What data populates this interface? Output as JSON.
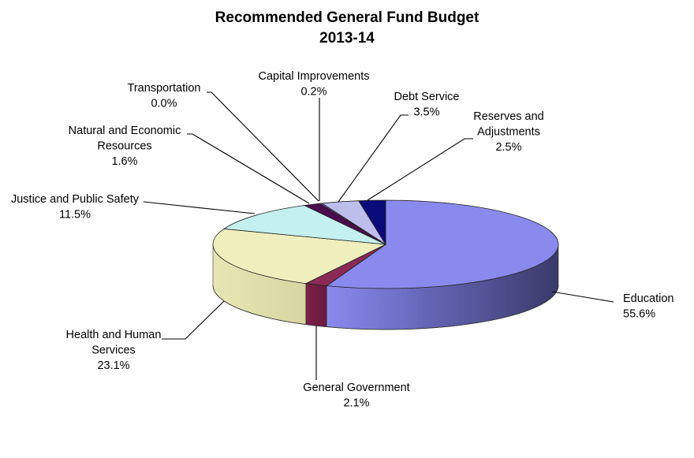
{
  "chart_data": {
    "type": "pie",
    "title": "Recommended General Fund Budget",
    "subtitle": "2013-14",
    "slices": [
      {
        "name": "Education",
        "label_lines": [
          "Education"
        ],
        "value_label": "55.6%",
        "value": 55.6,
        "color": "#8a8aee"
      },
      {
        "name": "General Government",
        "label_lines": [
          "General Government"
        ],
        "value_label": "2.1%",
        "value": 2.1,
        "color": "#8a2a55"
      },
      {
        "name": "Health and Human Services",
        "label_lines": [
          "Health and Human",
          "Services"
        ],
        "value_label": "23.1%",
        "value": 23.1,
        "color": "#efefbe"
      },
      {
        "name": "Justice and Public Safety",
        "label_lines": [
          "Justice and Public Safety"
        ],
        "value_label": "11.5%",
        "value": 11.5,
        "color": "#c4f0ef"
      },
      {
        "name": "Natural and Economic Resources",
        "label_lines": [
          "Natural and Economic",
          "Resources"
        ],
        "value_label": "1.6%",
        "value": 1.6,
        "color": "#4a0c4e"
      },
      {
        "name": "Transportation",
        "label_lines": [
          "Transportation"
        ],
        "value_label": "0.0%",
        "value": 0.0,
        "color": "#c8c8ea"
      },
      {
        "name": "Capital Improvements",
        "label_lines": [
          "Capital Improvements"
        ],
        "value_label": "0.2%",
        "value": 0.2,
        "color": "#7070cc"
      },
      {
        "name": "Debt Service",
        "label_lines": [
          "Debt Service"
        ],
        "value_label": "3.5%",
        "value": 3.5,
        "color": "#bebeed"
      },
      {
        "name": "Reserves and Adjustments",
        "label_lines": [
          "Reserves and",
          "Adjustments"
        ],
        "value_label": "2.5%",
        "value": 2.5,
        "color": "#0a0a78"
      }
    ]
  }
}
